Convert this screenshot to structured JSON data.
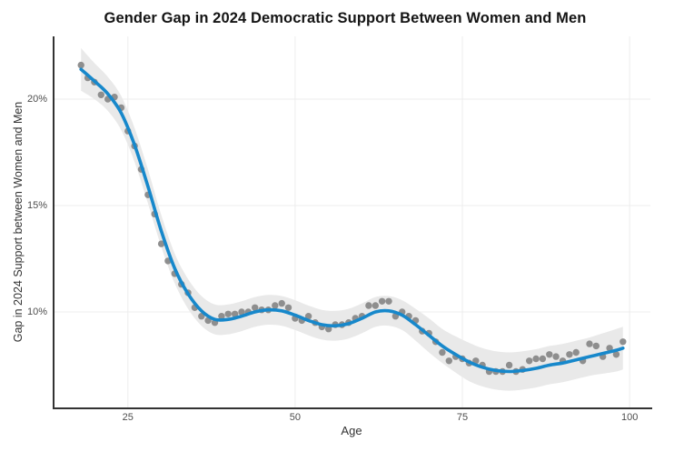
{
  "colors": {
    "line": "#1788cb",
    "points": "#858585",
    "band": "#e9e9e9",
    "grid": "#ededed",
    "axis": "#333333",
    "tick_text": "#4d4d4d",
    "axis_title_text": "#333333",
    "title_text": "#141414",
    "background": "#ffffff"
  },
  "chart_data": {
    "type": "scatter",
    "title": "Gender Gap in 2024 Democratic Support Between Women and Men",
    "xlabel": "Age",
    "ylabel": "Gap in 2024 Support between Women and Men",
    "xlim": [
      13.9,
      103.1
    ],
    "ylim": [
      5.47,
      22.95
    ],
    "grid": true,
    "legend": false,
    "x_ticks": [
      {
        "value": 25,
        "label": "25"
      },
      {
        "value": 50,
        "label": "50"
      },
      {
        "value": 75,
        "label": "75"
      },
      {
        "value": 100,
        "label": "100"
      }
    ],
    "y_ticks": [
      {
        "value": 10,
        "label": "10%"
      },
      {
        "value": 15,
        "label": "15%"
      },
      {
        "value": 20,
        "label": "20%"
      }
    ],
    "series_notes": "points = observed gender gap (pct pts) by age; smooth = loess fit with confidence band [age, fit, lo, hi]",
    "points": [
      [
        18,
        21.6
      ],
      [
        19,
        21.0
      ],
      [
        20,
        20.8
      ],
      [
        21,
        20.2
      ],
      [
        22,
        20.0
      ],
      [
        23,
        20.1
      ],
      [
        24,
        19.6
      ],
      [
        25,
        18.5
      ],
      [
        26,
        17.8
      ],
      [
        27,
        16.7
      ],
      [
        28,
        15.5
      ],
      [
        29,
        14.6
      ],
      [
        30,
        13.2
      ],
      [
        31,
        12.4
      ],
      [
        32,
        11.8
      ],
      [
        33,
        11.3
      ],
      [
        34,
        10.9
      ],
      [
        35,
        10.2
      ],
      [
        36,
        9.8
      ],
      [
        37,
        9.6
      ],
      [
        38,
        9.5
      ],
      [
        39,
        9.8
      ],
      [
        40,
        9.9
      ],
      [
        41,
        9.9
      ],
      [
        42,
        10.0
      ],
      [
        43,
        10.0
      ],
      [
        44,
        10.2
      ],
      [
        45,
        10.1
      ],
      [
        46,
        10.1
      ],
      [
        47,
        10.3
      ],
      [
        48,
        10.4
      ],
      [
        49,
        10.2
      ],
      [
        50,
        9.7
      ],
      [
        51,
        9.6
      ],
      [
        52,
        9.8
      ],
      [
        53,
        9.5
      ],
      [
        54,
        9.3
      ],
      [
        55,
        9.2
      ],
      [
        56,
        9.4
      ],
      [
        57,
        9.4
      ],
      [
        58,
        9.5
      ],
      [
        59,
        9.7
      ],
      [
        60,
        9.8
      ],
      [
        61,
        10.3
      ],
      [
        62,
        10.3
      ],
      [
        63,
        10.5
      ],
      [
        64,
        10.5
      ],
      [
        65,
        9.8
      ],
      [
        66,
        10.0
      ],
      [
        67,
        9.8
      ],
      [
        68,
        9.6
      ],
      [
        69,
        9.1
      ],
      [
        70,
        9.0
      ],
      [
        71,
        8.6
      ],
      [
        72,
        8.1
      ],
      [
        73,
        7.7
      ],
      [
        74,
        7.9
      ],
      [
        75,
        7.8
      ],
      [
        76,
        7.6
      ],
      [
        77,
        7.7
      ],
      [
        78,
        7.5
      ],
      [
        79,
        7.2
      ],
      [
        80,
        7.2
      ],
      [
        81,
        7.2
      ],
      [
        82,
        7.5
      ],
      [
        83,
        7.2
      ],
      [
        84,
        7.3
      ],
      [
        85,
        7.7
      ],
      [
        86,
        7.8
      ],
      [
        87,
        7.8
      ],
      [
        88,
        8.0
      ],
      [
        89,
        7.9
      ],
      [
        90,
        7.7
      ],
      [
        91,
        8.0
      ],
      [
        92,
        8.1
      ],
      [
        93,
        7.7
      ],
      [
        94,
        8.5
      ],
      [
        95,
        8.4
      ],
      [
        96,
        7.9
      ],
      [
        97,
        8.3
      ],
      [
        98,
        8.0
      ],
      [
        99,
        8.6
      ]
    ],
    "smooth": [
      [
        18,
        21.4,
        20.4,
        22.4
      ],
      [
        20,
        20.85,
        20.0,
        21.7
      ],
      [
        22,
        20.25,
        19.45,
        21.05
      ],
      [
        24,
        19.35,
        18.55,
        20.15
      ],
      [
        26,
        17.85,
        17.05,
        18.65
      ],
      [
        28,
        15.9,
        15.1,
        16.7
      ],
      [
        30,
        13.8,
        13.05,
        14.55
      ],
      [
        32,
        12.05,
        11.35,
        12.75
      ],
      [
        34,
        10.85,
        10.15,
        11.55
      ],
      [
        36,
        10.05,
        9.35,
        10.75
      ],
      [
        38,
        9.65,
        8.95,
        10.35
      ],
      [
        40,
        9.65,
        8.95,
        10.35
      ],
      [
        42,
        9.8,
        9.1,
        10.5
      ],
      [
        44,
        10.0,
        9.3,
        10.7
      ],
      [
        46,
        10.1,
        9.4,
        10.8
      ],
      [
        48,
        10.05,
        9.35,
        10.75
      ],
      [
        50,
        9.85,
        9.15,
        10.55
      ],
      [
        52,
        9.6,
        8.9,
        10.3
      ],
      [
        54,
        9.4,
        8.7,
        10.1
      ],
      [
        56,
        9.35,
        8.65,
        10.05
      ],
      [
        58,
        9.45,
        8.75,
        10.15
      ],
      [
        60,
        9.7,
        9.0,
        10.4
      ],
      [
        62,
        10.0,
        9.3,
        10.7
      ],
      [
        64,
        10.05,
        9.35,
        10.75
      ],
      [
        66,
        9.85,
        9.15,
        10.55
      ],
      [
        68,
        9.4,
        8.65,
        10.15
      ],
      [
        70,
        8.9,
        8.1,
        9.7
      ],
      [
        72,
        8.4,
        7.6,
        9.2
      ],
      [
        74,
        8.0,
        7.15,
        8.85
      ],
      [
        76,
        7.65,
        6.75,
        8.55
      ],
      [
        78,
        7.4,
        6.5,
        8.3
      ],
      [
        80,
        7.25,
        6.35,
        8.15
      ],
      [
        82,
        7.2,
        6.3,
        8.1
      ],
      [
        84,
        7.25,
        6.35,
        8.15
      ],
      [
        86,
        7.35,
        6.45,
        8.25
      ],
      [
        88,
        7.5,
        6.6,
        8.4
      ],
      [
        90,
        7.6,
        6.7,
        8.5
      ],
      [
        92,
        7.75,
        6.85,
        8.65
      ],
      [
        94,
        7.9,
        7.0,
        8.8
      ],
      [
        96,
        8.05,
        7.1,
        9.0
      ],
      [
        98,
        8.2,
        7.2,
        9.2
      ],
      [
        99,
        8.3,
        7.3,
        9.3
      ]
    ]
  }
}
